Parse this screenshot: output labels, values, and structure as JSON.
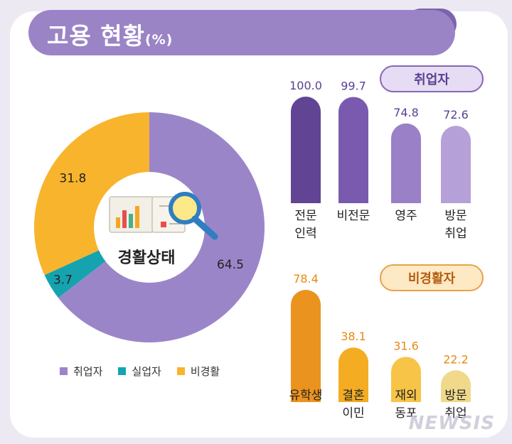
{
  "header": {
    "title": "고용 현황",
    "unit": "(%)"
  },
  "chart_data": [
    {
      "type": "pie",
      "title": "",
      "center_label": "경활상태",
      "categories": [
        "취업자",
        "실업자",
        "비경활"
      ],
      "values": [
        64.5,
        3.7,
        31.8
      ],
      "colors": [
        "#9b85c9",
        "#16a3b0",
        "#f8b42c"
      ],
      "legend": [
        "취업자",
        "실업자",
        "비경활"
      ],
      "legend_position": "bottom"
    },
    {
      "type": "bar",
      "title": "취업자",
      "categories": [
        "전문\n인력",
        "비전문",
        "영주",
        "방문\n취업"
      ],
      "values": [
        100.0,
        99.7,
        74.8,
        72.6
      ],
      "labels": [
        "100.0",
        "99.7",
        "74.8",
        "72.6"
      ],
      "colors": [
        "#614493",
        "#7a5aaf",
        "#9a80c6",
        "#b6a0d8"
      ],
      "label_color": "#5a3f93"
    },
    {
      "type": "bar",
      "title": "비경활자",
      "categories": [
        "유학생",
        "결혼\n이민",
        "재외\n동포",
        "방문\n취업"
      ],
      "values": [
        78.4,
        38.1,
        31.6,
        22.2
      ],
      "labels": [
        "78.4",
        "38.1",
        "31.6",
        "22.2"
      ],
      "colors": [
        "#eb931f",
        "#f4ad22",
        "#f8c447",
        "#f0d98a"
      ],
      "label_color": "#e58a10"
    }
  ],
  "watermark": "NEWSIS"
}
